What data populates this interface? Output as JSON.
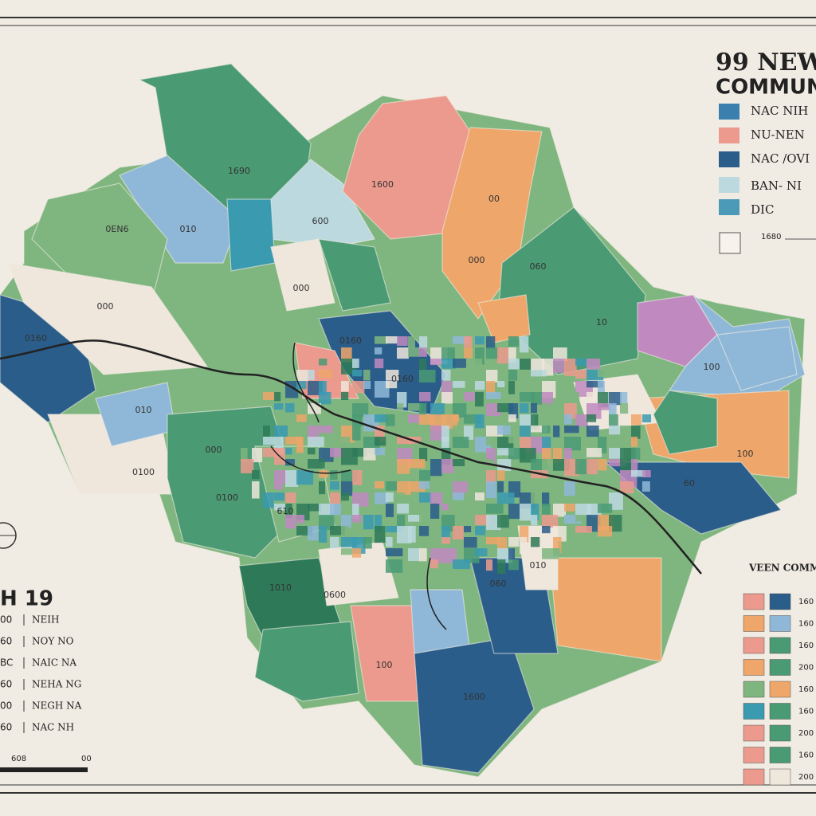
{
  "title": {
    "line1": "99 NEW",
    "line2": "COMMUN"
  },
  "legend_top": {
    "items": [
      "NAC NIH",
      "NU-NEN",
      "NAC /OVI",
      "BAN- NI",
      "DIC"
    ],
    "extra": "1680"
  },
  "legend_left": {
    "title": "H 19",
    "rows": [
      [
        "00",
        "NEIH"
      ],
      [
        "60",
        "NOY NO"
      ],
      [
        "BC",
        "NAIC NA"
      ],
      [
        "60",
        "NEHA NG"
      ],
      [
        "00",
        "NEGH NA"
      ],
      [
        "60",
        "NAC NH"
      ]
    ],
    "scale": [
      "608",
      "00"
    ]
  },
  "legend_right": {
    "title": "VEEN COMM",
    "rows": [
      "160",
      "160",
      "160",
      "200",
      "160",
      "160",
      "200",
      "160",
      "200"
    ]
  },
  "map": {
    "labels": [
      "1690",
      "1600",
      "600",
      "000",
      "0EN6",
      "010",
      "00",
      "000",
      "0100",
      "0160",
      "10",
      "000",
      "0160",
      "0160",
      "010",
      "060",
      "100",
      "100",
      "1600",
      "60",
      "060",
      "100",
      "1010",
      "0600",
      "0100",
      "610",
      "000",
      "010"
    ]
  }
}
